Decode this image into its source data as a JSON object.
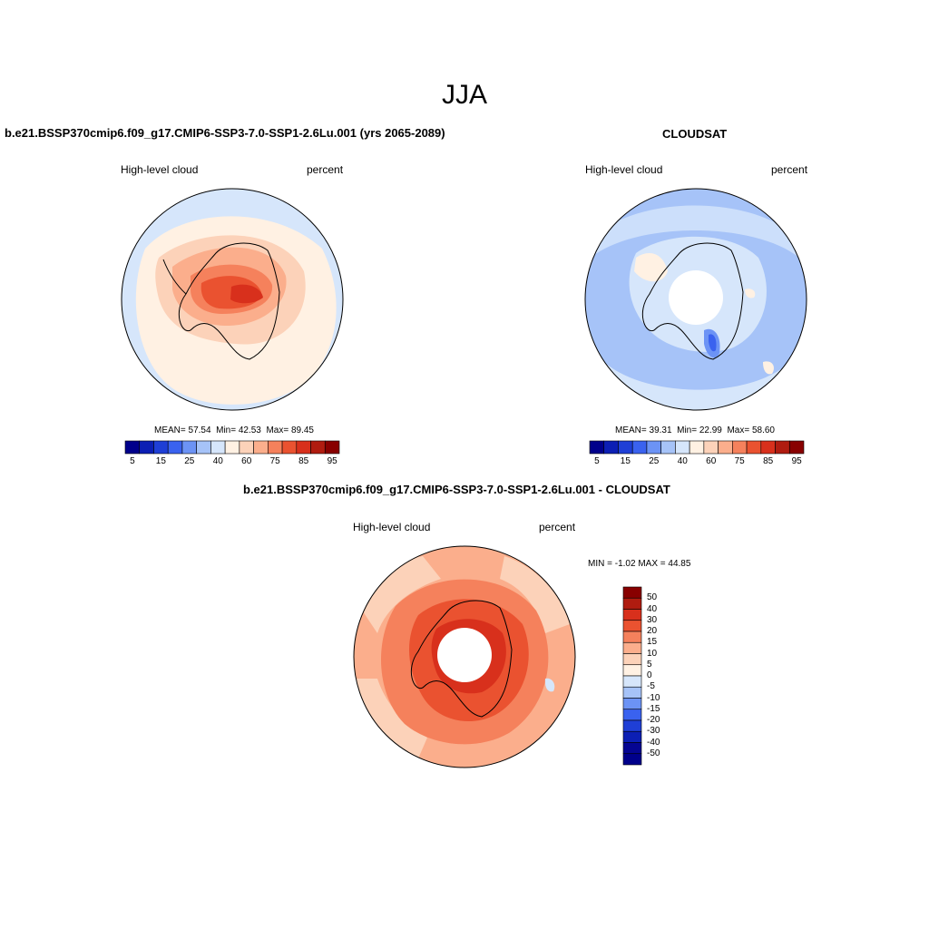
{
  "page": {
    "season": "JJA"
  },
  "panels": [
    {
      "id": "model",
      "title": "b.e21.BSSP370cmip6.f09_g17.CMIP6-SSP3-7.0-SSP1-2.6Lu.001 (yrs 2065-2089)",
      "left_label": "High-level cloud",
      "right_label": "percent",
      "stats": {
        "mean_label": "MEAN=",
        "mean": "57.54",
        "min_label": "Min=",
        "min": "42.53",
        "max_label": "Max=",
        "max": "89.45"
      }
    },
    {
      "id": "obs",
      "title": "CLOUDSAT",
      "left_label": "High-level cloud",
      "right_label": "percent",
      "stats": {
        "mean_label": "MEAN=",
        "mean": "39.31",
        "min_label": "Min=",
        "min": "22.99",
        "max_label": "Max=",
        "max": "58.60"
      }
    },
    {
      "id": "diff",
      "title": "b.e21.BSSP370cmip6.f09_g17.CMIP6-SSP3-7.0-SSP1-2.6Lu.001 - CLOUDSAT",
      "left_label": "High-level cloud",
      "right_label": "percent",
      "stats": {
        "min_label": "MIN =",
        "min": "-1.02",
        "max_label": "MAX =",
        "max": "44.85"
      }
    }
  ],
  "colorbars": {
    "abs": {
      "colors": [
        "#00008b",
        "#0c1fb4",
        "#1f3fd6",
        "#3a62ef",
        "#6c93f5",
        "#a6c3f8",
        "#d6e6fb",
        "#fff1e3",
        "#fcd2b9",
        "#fbae8c",
        "#f5815c",
        "#ea5230",
        "#d8301c",
        "#b01c10",
        "#880000"
      ],
      "labels": [
        "5",
        "15",
        "25",
        "40",
        "60",
        "75",
        "85",
        "95"
      ]
    },
    "diff": {
      "colors": [
        "#880000",
        "#b01c10",
        "#d8301c",
        "#ea5230",
        "#f5815c",
        "#fbae8c",
        "#fcd2b9",
        "#fff1e3",
        "#d6e6fb",
        "#a6c3f8",
        "#6c93f5",
        "#3a62ef",
        "#1f3fd6",
        "#0c1fb4",
        "#050592",
        "#00008b"
      ],
      "labels": [
        "50",
        "40",
        "30",
        "20",
        "15",
        "10",
        "5",
        "0",
        "-5",
        "-10",
        "-15",
        "-20",
        "-30",
        "-40",
        "-50"
      ]
    }
  }
}
